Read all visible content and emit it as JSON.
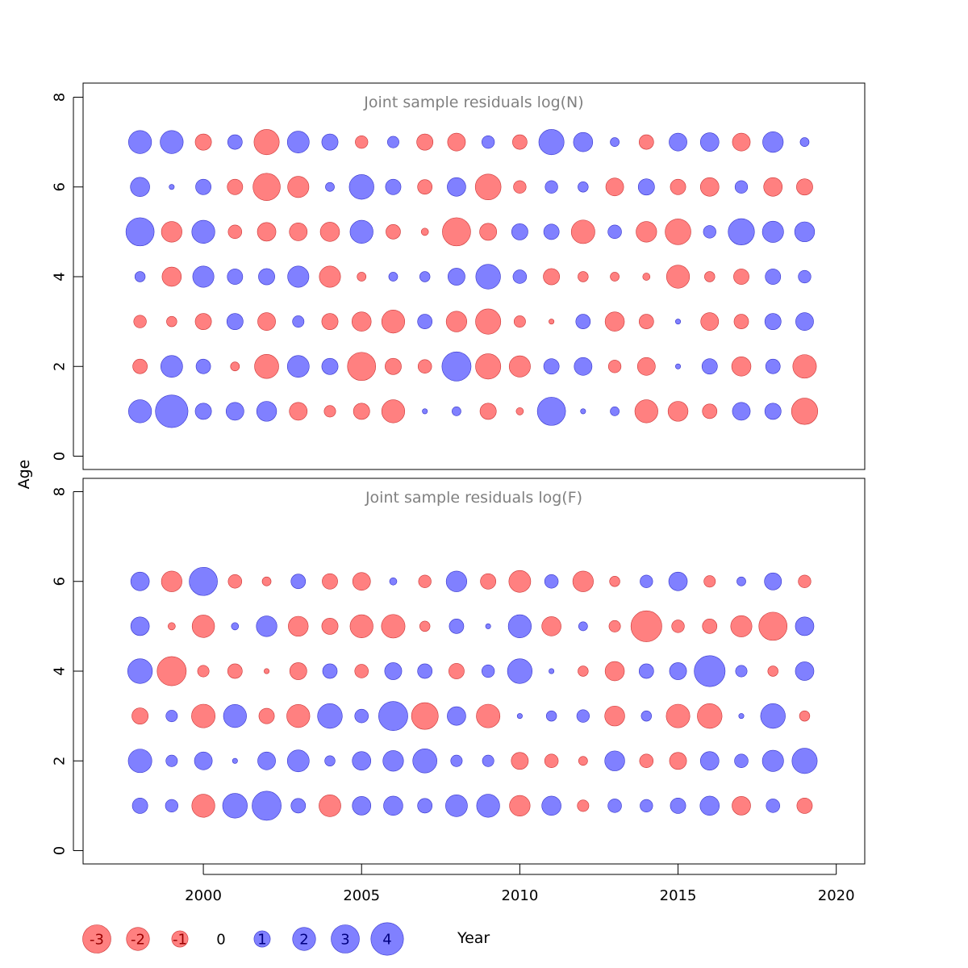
{
  "chart_data": {
    "type": "scatter",
    "subtype": "bubble",
    "xlabel": "Year",
    "ylabel": "Age",
    "x_ticks": [
      "2000",
      "2005",
      "2010",
      "2015",
      "2020"
    ],
    "xlim": [
      1996.2,
      2020.9
    ],
    "y_ticks": [
      "0",
      "2",
      "4",
      "6",
      "8"
    ],
    "ylim": [
      -0.3,
      8.3
    ],
    "colors": {
      "positive": "#8080ff",
      "negative": "#ff8080",
      "positive_edge": "#3333cc",
      "negative_edge": "#cc3333"
    },
    "years": [
      1998,
      1999,
      2000,
      2001,
      2002,
      2003,
      2004,
      2005,
      2006,
      2007,
      2008,
      2009,
      2010,
      2011,
      2012,
      2013,
      2014,
      2015,
      2016,
      2017,
      2018,
      2019
    ],
    "panels": [
      {
        "title": "Joint sample residuals log(N)",
        "ages": [
          1,
          2,
          3,
          4,
          5,
          6,
          7
        ],
        "residuals": [
          [
            2.0,
            4.0,
            1.0,
            1.2,
            1.5,
            -1.2,
            -0.5,
            -1.0,
            -2.0,
            0.1,
            0.3,
            -1.0,
            -0.2,
            3.0,
            0.1,
            0.3,
            -2.0,
            -1.5,
            -0.8,
            1.2,
            1.0,
            -2.6
          ],
          [
            -0.8,
            1.8,
            0.8,
            -0.3,
            -2.2,
            1.8,
            1.0,
            -3.0,
            -1.0,
            -0.7,
            3.2,
            -2.4,
            -1.7,
            0.9,
            1.2,
            -0.6,
            -1.2,
            0.1,
            0.9,
            -1.4,
            0.8,
            -2.1
          ],
          [
            -0.6,
            -0.4,
            -1.0,
            1.0,
            -1.2,
            0.5,
            -1.0,
            -1.4,
            -2.0,
            0.8,
            -1.6,
            -2.4,
            -0.5,
            -0.1,
            0.8,
            -1.4,
            -0.8,
            0.1,
            -1.2,
            -0.8,
            1.0,
            1.2
          ],
          [
            0.4,
            -1.4,
            1.7,
            0.9,
            1.0,
            1.7,
            -1.7,
            -0.3,
            0.3,
            0.4,
            1.1,
            2.3,
            0.7,
            -1.0,
            -0.4,
            -0.3,
            -0.2,
            -2.0,
            -0.4,
            -0.9,
            0.9,
            0.6
          ],
          [
            3.0,
            -1.6,
            2.0,
            -0.7,
            -1.3,
            -1.2,
            -1.4,
            2.0,
            -0.8,
            -0.2,
            -3.0,
            -1.1,
            1.0,
            0.9,
            -2.1,
            0.7,
            -1.6,
            -2.5,
            0.6,
            2.6,
            1.7,
            1.5
          ],
          [
            1.4,
            0.1,
            0.9,
            -0.9,
            -2.8,
            -1.7,
            0.3,
            2.3,
            0.9,
            -0.8,
            1.3,
            -2.5,
            -0.6,
            0.6,
            0.4,
            -1.2,
            1.0,
            -0.9,
            -1.3,
            0.6,
            -1.3,
            -1.0
          ],
          [
            2.0,
            2.0,
            -1.0,
            0.8,
            -2.4,
            1.8,
            1.0,
            -0.6,
            0.5,
            -1.0,
            -1.2,
            0.6,
            -0.8,
            2.4,
            1.4,
            0.3,
            -0.8,
            1.2,
            1.3,
            -1.2,
            1.6,
            0.3
          ]
        ]
      },
      {
        "title": "Joint sample residuals log(F)",
        "ages": [
          1,
          2,
          3,
          4,
          5,
          6
        ],
        "residuals": [
          [
            0.9,
            0.6,
            -2.0,
            2.3,
            3.2,
            0.8,
            -1.8,
            1.3,
            1.4,
            0.8,
            1.8,
            2.0,
            -1.6,
            1.4,
            -0.5,
            0.7,
            0.6,
            0.9,
            1.4,
            -1.3,
            0.7,
            -0.9
          ],
          [
            2.1,
            0.5,
            1.2,
            0.1,
            1.2,
            1.8,
            0.4,
            1.3,
            1.6,
            2.2,
            0.5,
            0.5,
            -1.1,
            -0.7,
            -0.3,
            1.5,
            -0.7,
            -1.1,
            1.3,
            0.7,
            1.7,
            2.4
          ],
          [
            -1.0,
            0.5,
            -2.1,
            2.0,
            -0.9,
            -2.0,
            2.3,
            0.7,
            3.2,
            -2.7,
            1.3,
            -2.1,
            0.1,
            0.4,
            0.6,
            -1.5,
            0.4,
            -2.1,
            -2.3,
            0.1,
            2.3,
            -0.4
          ],
          [
            2.3,
            -3.2,
            -0.5,
            -0.8,
            -0.1,
            -1.1,
            0.8,
            -0.7,
            1.1,
            0.8,
            -0.9,
            0.6,
            2.3,
            0.1,
            -0.4,
            -1.4,
            0.8,
            1.1,
            3.6,
            0.5,
            -0.4,
            1.3
          ],
          [
            1.3,
            -0.2,
            -1.9,
            0.2,
            1.6,
            -1.5,
            -1.0,
            -2.0,
            -2.1,
            -0.4,
            0.8,
            0.1,
            2.0,
            -1.4,
            0.3,
            -0.5,
            -3.6,
            -0.6,
            -0.8,
            -1.7,
            -3.0,
            1.3
          ],
          [
            1.3,
            -1.6,
            3.0,
            -0.7,
            -0.3,
            0.8,
            -0.9,
            -1.2,
            0.2,
            -0.6,
            1.6,
            -0.9,
            -1.8,
            0.7,
            -1.6,
            -0.4,
            0.6,
            1.3,
            -0.5,
            0.3,
            1.1,
            -0.6
          ]
        ]
      }
    ],
    "legend": {
      "values": [
        -3,
        -2,
        -1,
        0,
        1,
        2,
        3,
        4
      ],
      "labels": [
        "-3",
        "-2",
        "-1",
        "0",
        "1",
        "2",
        "3",
        "4"
      ]
    }
  }
}
